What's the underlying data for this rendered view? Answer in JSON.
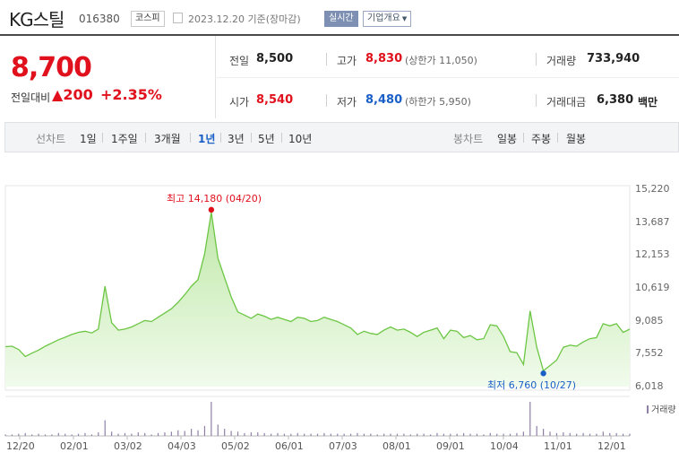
{
  "header": {
    "name": "KG스틸",
    "code": "016380",
    "market": "코스피",
    "date": "2023.12.20 기준(장마감)",
    "live_label": "실시간",
    "corp_label": "기업개요"
  },
  "price": {
    "current": "8,700",
    "change_label": "전일대비",
    "change_arrow": "▲",
    "change_value": "200",
    "change_pct": "+2.35%"
  },
  "stats": {
    "prev_label": "전일",
    "prev_value": "8,500",
    "high_label": "고가",
    "high_value": "8,830",
    "upper_limit": "(상한가 11,050)",
    "volume_label": "거래량",
    "volume_value": "733,940",
    "open_label": "시가",
    "open_value": "8,540",
    "low_label": "저가",
    "low_value": "8,480",
    "lower_limit": "(하한가 5,950)",
    "amount_label": "거래대금",
    "amount_value": "6,380",
    "amount_unit": "백만"
  },
  "line_tabs": {
    "label": "선차트",
    "items": [
      "1일",
      "1주일",
      "3개월",
      "1년",
      "3년",
      "5년",
      "10년"
    ],
    "active": "1년"
  },
  "candle_tabs": {
    "label": "봉차트",
    "items": [
      "일봉",
      "주봉",
      "월봉"
    ]
  },
  "chart_data": {
    "type": "area",
    "y_ticks": [
      "15,220",
      "13,687",
      "12,153",
      "10,619",
      "9,085",
      "7,552",
      "6,018"
    ],
    "ylim": [
      6018,
      15220
    ],
    "x_ticks": [
      "12/20",
      "02/01",
      "03/02",
      "04/03",
      "05/02",
      "06/01",
      "07/03",
      "08/01",
      "09/01",
      "10/04",
      "11/01",
      "12/01"
    ],
    "high_annotation": "최고 14,180 (04/20)",
    "low_annotation": "최저 6,760 (10/27)",
    "high": {
      "date": "04/20",
      "value": 14180
    },
    "low": {
      "date": "10/27",
      "value": 6760
    },
    "volume_legend": "거래량",
    "colors": {
      "line": "#6cc644",
      "fill_top": "#bfe8a8",
      "fill_bottom": "#f1fbec",
      "high": "#e0101d",
      "low": "#1a5fc8",
      "volume": "#8f80a8"
    },
    "series": [
      {
        "values": [
          7880,
          7900,
          7750,
          7420,
          7580,
          7720,
          7900,
          8050,
          8200,
          8320,
          8450,
          8550,
          8600,
          8520,
          8700,
          10700,
          9000,
          8650,
          8700,
          8800,
          8950,
          9100,
          9050,
          9250,
          9450,
          9650,
          9950,
          10300,
          10700,
          11000,
          12200,
          14150,
          12000,
          11100,
          10200,
          9500,
          9350,
          9200,
          9400,
          9300,
          9150,
          9250,
          9150,
          9050,
          9250,
          9200,
          9050,
          9100,
          9250,
          9150,
          9050,
          8900,
          8750,
          8450,
          8600,
          8500,
          8450,
          8650,
          8800,
          8650,
          8700,
          8550,
          8350,
          8550,
          8650,
          8750,
          8250,
          8650,
          8600,
          8300,
          8400,
          8200,
          8250,
          8900,
          8850,
          8350,
          7650,
          7600,
          7050,
          9550,
          7850,
          6760,
          7000,
          7250,
          7850,
          7950,
          7900,
          8100,
          8250,
          8300,
          8950,
          8850,
          8950,
          8550,
          8700
        ]
      }
    ],
    "volume": [
      2,
      2,
      3,
      4,
      2,
      3,
      2,
      2,
      4,
      3,
      2,
      3,
      4,
      2,
      5,
      22,
      6,
      3,
      4,
      3,
      5,
      4,
      2,
      4,
      5,
      6,
      8,
      7,
      10,
      8,
      14,
      48,
      16,
      10,
      7,
      6,
      4,
      5,
      5,
      4,
      3,
      4,
      3,
      3,
      4,
      3,
      3,
      3,
      4,
      3,
      3,
      3,
      3,
      4,
      3,
      3,
      2,
      3,
      3,
      3,
      3,
      2,
      3,
      3,
      2,
      4,
      3,
      3,
      3,
      4,
      3,
      3,
      2,
      4,
      3,
      3,
      3,
      4,
      6,
      48,
      14,
      10,
      6,
      4,
      5,
      4,
      3,
      4,
      3,
      3,
      6,
      4,
      4,
      3,
      3
    ]
  }
}
